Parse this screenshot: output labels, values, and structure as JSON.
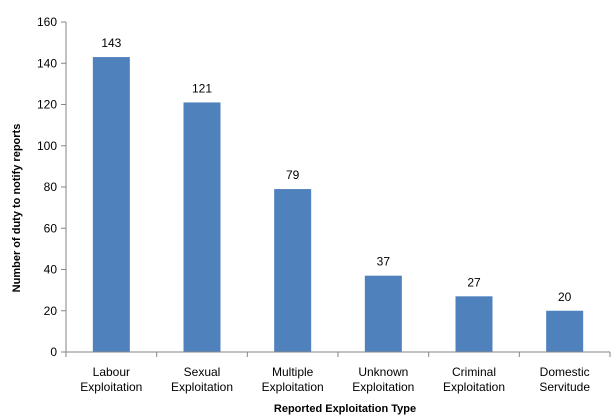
{
  "chart_data": {
    "type": "bar",
    "title": "",
    "xlabel": "Reported Exploitation Type",
    "ylabel": "Number of duty to notify reports",
    "categories": [
      [
        "Labour",
        "Exploitation"
      ],
      [
        "Sexual",
        "Exploitation"
      ],
      [
        "Multiple",
        "Exploitation"
      ],
      [
        "Unknown",
        "Exploitation"
      ],
      [
        "Criminal",
        "Exploitation"
      ],
      [
        "Domestic",
        "Servitude"
      ]
    ],
    "values": [
      143,
      121,
      79,
      37,
      27,
      20
    ],
    "ylim": [
      0,
      160
    ],
    "yticks": [
      0,
      20,
      40,
      60,
      80,
      100,
      120,
      140,
      160
    ],
    "bar_color": "#4F81BD",
    "grid": false,
    "legend": "none"
  }
}
